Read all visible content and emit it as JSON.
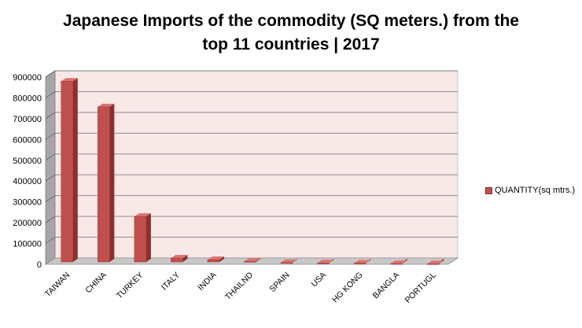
{
  "chart_data": {
    "type": "bar",
    "title_line1": "Japanese Imports of the commodity (SQ meters.) from the",
    "title_line2": "top 11 countries | 2017",
    "categories": [
      "TAIWAN",
      "CHINA",
      "TURKEY",
      "ITALY",
      "INDIA",
      "THAILND",
      "SPAIN",
      "USA",
      "HG KONG",
      "BANGLA",
      "PORTUGL"
    ],
    "series": [
      {
        "name": "QUANTITY(sq  mtrs.)",
        "values": [
          880000,
          757000,
          230000,
          30000,
          22000,
          14000,
          8000,
          6000,
          5000,
          3500,
          2500
        ]
      }
    ],
    "ylim": [
      0,
      900000
    ],
    "yticks": [
      "0",
      "100000",
      "200000",
      "300000",
      "400000",
      "500000",
      "600000",
      "700000",
      "800000",
      "900000"
    ],
    "grid": true,
    "legend": "right",
    "colors": {
      "bar_front": "#c0504d",
      "bar_side": "#8e2f2c",
      "bar_top": "#d9736f",
      "plot_back": "#f8e8e8",
      "wall_side": "#a6a6a6",
      "floor": "#c8c8c8"
    }
  }
}
